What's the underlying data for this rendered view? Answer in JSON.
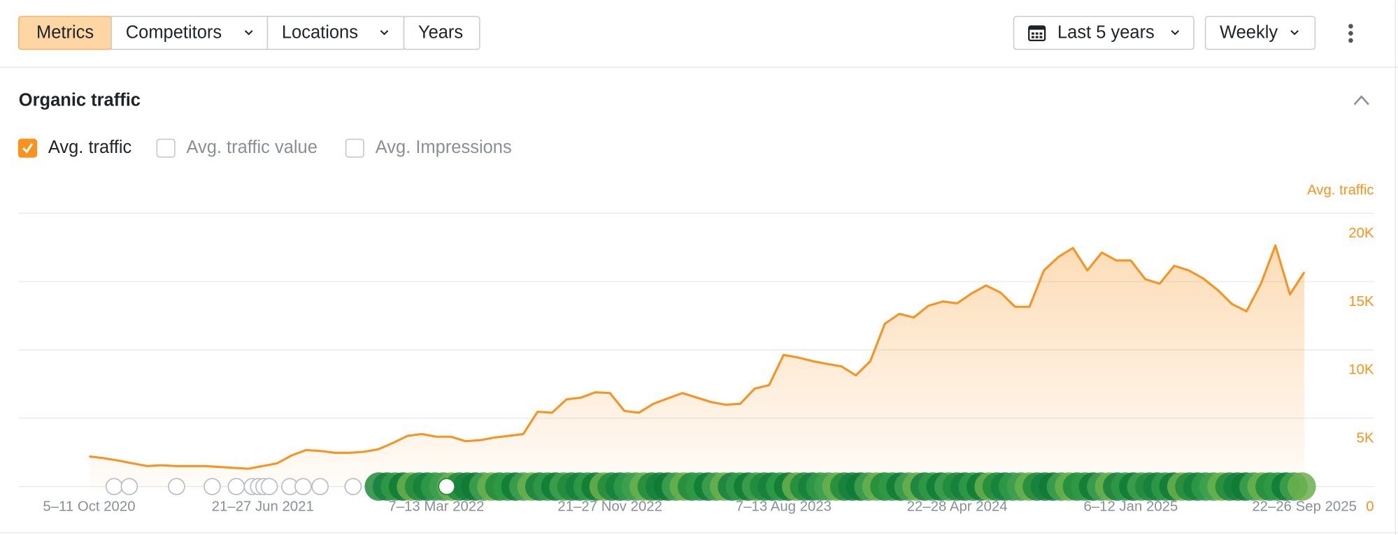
{
  "toolbar": {
    "tabs": [
      "Metrics",
      "Competitors",
      "Locations",
      "Years"
    ],
    "date_range": "Last 5 years",
    "interval": "Weekly"
  },
  "section": {
    "title": "Organic traffic",
    "metrics": [
      {
        "label": "Avg. traffic",
        "checked": true
      },
      {
        "label": "Avg. traffic value",
        "checked": false
      },
      {
        "label": "Avg. Impressions",
        "checked": false
      }
    ]
  },
  "chart_data": {
    "type": "area",
    "categories": [
      "5–11 Oct 2020",
      null,
      null,
      null,
      null,
      null,
      null,
      null,
      null,
      null,
      null,
      null,
      "21–27 Jun 2021",
      null,
      null,
      null,
      null,
      null,
      null,
      null,
      null,
      null,
      null,
      null,
      "7–13 Mar 2022",
      null,
      null,
      null,
      null,
      null,
      null,
      null,
      null,
      null,
      null,
      null,
      "21–27 Nov 2022",
      null,
      null,
      null,
      null,
      null,
      null,
      null,
      null,
      null,
      null,
      null,
      "7–13 Aug 2023",
      null,
      null,
      null,
      null,
      null,
      null,
      null,
      null,
      null,
      null,
      null,
      "22–28 Apr 2024",
      null,
      null,
      null,
      null,
      null,
      null,
      null,
      null,
      null,
      null,
      null,
      "6–12 Jan 2025",
      null,
      null,
      null,
      null,
      null,
      null,
      null,
      null,
      null,
      null,
      null,
      "22–26 Sep 2025"
    ],
    "series": [
      {
        "name": "Avg. traffic",
        "color": "#f7931e",
        "values": [
          2200,
          2080,
          1900,
          1700,
          1500,
          1560,
          1500,
          1500,
          1500,
          1430,
          1370,
          1300,
          1500,
          1700,
          2280,
          2670,
          2600,
          2470,
          2470,
          2540,
          2730,
          3190,
          3710,
          3840,
          3650,
          3650,
          3320,
          3390,
          3580,
          3710,
          3840,
          5470,
          5400,
          6380,
          6510,
          6900,
          6840,
          5530,
          5400,
          6050,
          6450,
          6840,
          6510,
          6180,
          5990,
          6050,
          7160,
          7420,
          9630,
          9440,
          9180,
          8980,
          8790,
          8140,
          9180,
          11910,
          12630,
          12370,
          13220,
          13540,
          13410,
          14130,
          14710,
          14190,
          13150,
          13150,
          15820,
          16800,
          17450,
          15820,
          17120,
          16540,
          16540,
          15170,
          14840,
          16150,
          15820,
          15230,
          14390,
          13350,
          12820,
          14840,
          17640,
          14060,
          15690
        ]
      }
    ],
    "ylim": [
      0,
      20000
    ],
    "yticks": [
      0,
      {
        "value": 5000,
        "label": "5K"
      },
      {
        "value": 10000,
        "label": "10K"
      },
      {
        "value": 15000,
        "label": "15K"
      },
      {
        "value": 20000,
        "label": "20K"
      }
    ],
    "grid": true
  }
}
